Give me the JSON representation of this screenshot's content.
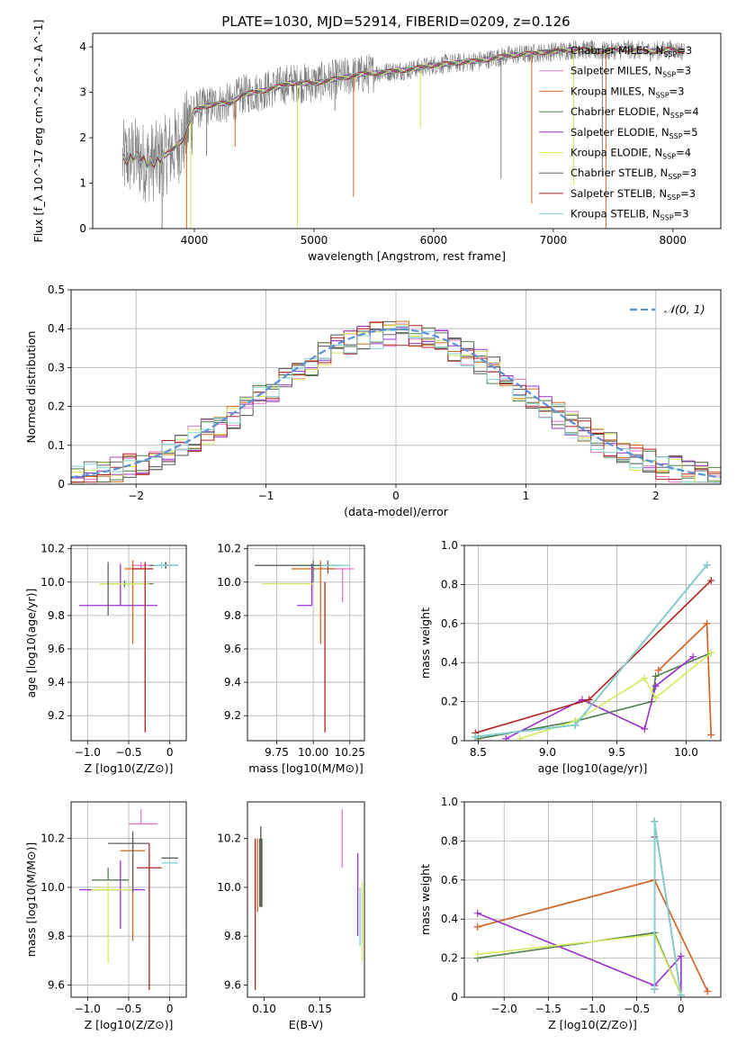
{
  "figure_title": "PLATE=1030, MJD=52914, FIBERID=0209, z=0.126",
  "series": [
    {
      "name": "Chabrier MILES",
      "nssp": "3",
      "color": "#505050"
    },
    {
      "name": "Salpeter MILES",
      "nssp": "3",
      "color": "#e377c2"
    },
    {
      "name": "Kroupa MILES",
      "nssp": "3",
      "color": "#d2691e"
    },
    {
      "name": "Chabrier ELODIE",
      "nssp": "4",
      "color": "#4f7f4f"
    },
    {
      "name": "Salpeter ELODIE",
      "nssp": "5",
      "color": "#9932cc"
    },
    {
      "name": "Kroupa ELODIE",
      "nssp": "4",
      "color": "#d4ea5a"
    },
    {
      "name": "Chabrier STELIB",
      "nssp": "3",
      "color": "#606060"
    },
    {
      "name": "Salpeter STELIB",
      "nssp": "3",
      "color": "#b22222"
    },
    {
      "name": "Kroupa STELIB",
      "nssp": "3",
      "color": "#7fd6d6"
    }
  ],
  "chart_data": [
    {
      "id": "spectrum",
      "type": "line",
      "xlabel": "wavelength [Angstrom, rest frame]",
      "ylabel": "Flux [f_λ 10^-17 erg cm^-2 s^-1 A^-1]",
      "xlim": [
        3150,
        8400
      ],
      "ylim": [
        0,
        4.3
      ],
      "xticks": [
        4000,
        5000,
        6000,
        7000,
        8000
      ],
      "yticks": [
        0,
        1,
        2,
        3,
        4
      ],
      "grid": false,
      "legend": "top-right",
      "data_color": "#808080",
      "model_x": [
        3400,
        3500,
        3600,
        3700,
        3800,
        3900,
        4000,
        4100,
        4200,
        4300,
        4400,
        4600,
        4800,
        5000,
        5200,
        5400,
        5600,
        5800,
        6000,
        6200,
        6400,
        6600,
        6800,
        7000,
        7200,
        7400,
        7600,
        7800,
        8000,
        8100
      ],
      "model_y": [
        1.5,
        1.6,
        1.45,
        1.5,
        1.7,
        1.95,
        2.6,
        2.7,
        2.75,
        2.75,
        2.95,
        3.05,
        3.2,
        3.2,
        3.3,
        3.4,
        3.45,
        3.5,
        3.6,
        3.65,
        3.7,
        3.8,
        3.85,
        3.9,
        3.95,
        3.9,
        3.95,
        3.9,
        3.95,
        3.9
      ],
      "absorption_x": [
        3730,
        3935,
        3970,
        4102,
        4340,
        4861,
        5175,
        5330,
        5890,
        6563,
        6820,
        7170,
        7410,
        7440
      ],
      "absorption_y": [
        0.0,
        0.0,
        0.0,
        1.6,
        1.8,
        0.0,
        2.6,
        0.7,
        2.2,
        1.1,
        0.55,
        0.95,
        1.15,
        0.0
      ]
    },
    {
      "id": "residuals",
      "type": "histogram",
      "xlabel": "(data-model)/error",
      "ylabel": "Normed distribution",
      "xlim": [
        -2.5,
        2.5
      ],
      "ylim": [
        0,
        0.5
      ],
      "xticks": [
        -2,
        -1,
        0,
        1,
        2
      ],
      "yticks": [
        0.0,
        0.1,
        0.2,
        0.3,
        0.4,
        0.5
      ],
      "grid": true,
      "legend": "top-right",
      "gaussian_label": "𝒩(0, 1)",
      "gaussian_color": "#5b8fd6",
      "bin_edges_start": -2.5,
      "bin_width": 0.1,
      "bins": 50
    },
    {
      "id": "age-vs-Z",
      "type": "errorbar",
      "xlabel": "Z [log10(Z/Z⊙)]",
      "ylabel": "age  [log10(age/yr)]",
      "xlim": [
        -1.2,
        0.2
      ],
      "ylim": [
        9.05,
        10.22
      ],
      "xticks": [
        -1.0,
        -0.5,
        0.0
      ],
      "yticks": [
        9.2,
        9.4,
        9.6,
        9.8,
        10.0,
        10.2
      ],
      "grid": true,
      "points": [
        {
          "s": 0,
          "x": -0.05,
          "xerr": [
            0.2,
            0.15
          ],
          "y": 10.1,
          "yerr": [
            0.02,
            0.02
          ]
        },
        {
          "s": 1,
          "x": -0.35,
          "xerr": [
            0.1,
            0.1
          ],
          "y": 10.1,
          "yerr": [
            0.02,
            0.02
          ]
        },
        {
          "s": 2,
          "x": -0.45,
          "xerr": [
            0.1,
            0.1
          ],
          "y": 10.08,
          "yerr": [
            0.45,
            0.05
          ]
        },
        {
          "s": 3,
          "x": -0.55,
          "xerr": [
            0.3,
            0.35
          ],
          "y": 9.99,
          "yerr": [
            0.02,
            0.02
          ]
        },
        {
          "s": 4,
          "x": -0.6,
          "xerr": [
            0.5,
            0.45
          ],
          "y": 9.86,
          "yerr": [
            0.0,
            0.25
          ]
        },
        {
          "s": 5,
          "x": -0.55,
          "xerr": [
            0.3,
            0.3
          ],
          "y": 9.99,
          "yerr": [
            0.0,
            0.0
          ]
        },
        {
          "s": 6,
          "x": -0.75,
          "xerr": [
            0.0,
            0.0
          ],
          "y": 9.99,
          "yerr": [
            0.19,
            0.13
          ]
        },
        {
          "s": 7,
          "x": -0.3,
          "xerr": [
            0.15,
            0.1
          ],
          "y": 10.08,
          "yerr": [
            0.98,
            0.04
          ]
        },
        {
          "s": 8,
          "x": -0.1,
          "xerr": [
            0.1,
            0.2
          ],
          "y": 10.1,
          "yerr": [
            0.02,
            0.02
          ]
        }
      ]
    },
    {
      "id": "age-vs-mass",
      "type": "errorbar",
      "xlabel": "mass [log10(M/M⊙)]",
      "ylabel": "",
      "xlim": [
        9.55,
        10.35
      ],
      "ylim": [
        9.05,
        10.22
      ],
      "xticks": [
        9.75,
        10.0,
        10.25
      ],
      "yticks": [
        9.2,
        9.4,
        9.6,
        9.8,
        10.0,
        10.2
      ],
      "grid": true,
      "points": [
        {
          "s": 0,
          "x": 10.1,
          "xerr": [
            0.5,
            0.0
          ],
          "y": 10.1,
          "yerr": [
            0.0,
            0.0
          ]
        },
        {
          "s": 1,
          "x": 10.2,
          "xerr": [
            0.1,
            0.08
          ],
          "y": 10.08,
          "yerr": [
            0.2,
            0.0
          ]
        },
        {
          "s": 2,
          "x": 10.05,
          "xerr": [
            0.2,
            0.1
          ],
          "y": 10.08,
          "yerr": [
            0.45,
            0.05
          ]
        },
        {
          "s": 3,
          "x": 10.0,
          "xerr": [
            0.1,
            0.2
          ],
          "y": 10.1,
          "yerr": [
            0.1,
            0.03
          ]
        },
        {
          "s": 4,
          "x": 9.99,
          "xerr": [
            0.1,
            0.0
          ],
          "y": 9.86,
          "yerr": [
            0.0,
            0.25
          ]
        },
        {
          "s": 5,
          "x": 9.75,
          "xerr": [
            0.1,
            0.25
          ],
          "y": 9.99,
          "yerr": [
            0.0,
            0.0
          ]
        },
        {
          "s": 6,
          "x": 10.1,
          "xerr": [
            0.05,
            0.05
          ],
          "y": 10.1,
          "yerr": [
            0.05,
            0.03
          ]
        },
        {
          "s": 7,
          "x": 10.08,
          "xerr": [
            0.0,
            0.0
          ],
          "y": 10.0,
          "yerr": [
            0.9,
            0.0
          ]
        },
        {
          "s": 8,
          "x": 10.15,
          "xerr": [
            0.1,
            0.1
          ],
          "y": 10.1,
          "yerr": [
            0.0,
            0.0
          ]
        }
      ]
    },
    {
      "id": "weight-vs-age",
      "type": "line",
      "xlabel": "age  [log10(age/yr)]",
      "ylabel": "mass weight",
      "xlim": [
        8.4,
        10.25
      ],
      "ylim": [
        0,
        1
      ],
      "xticks": [
        8.5,
        9.0,
        9.5,
        10.0
      ],
      "yticks": [
        0.0,
        0.2,
        0.4,
        0.6,
        0.8,
        1.0
      ],
      "grid": true,
      "lines": [
        {
          "s": 0,
          "x": [
            8.48,
            9.2,
            10.15
          ],
          "y": [
            0.02,
            0.08,
            0.9
          ]
        },
        {
          "s": 1,
          "x": [
            9.8,
            10.15,
            10.18
          ],
          "y": [
            0.36,
            0.6,
            0.03
          ]
        },
        {
          "s": 2,
          "x": [
            9.8,
            10.15,
            10.18
          ],
          "y": [
            0.36,
            0.6,
            0.03
          ]
        },
        {
          "s": 3,
          "x": [
            8.5,
            9.2,
            9.75,
            9.78,
            10.18
          ],
          "y": [
            0.01,
            0.1,
            0.2,
            0.33,
            0.45
          ]
        },
        {
          "s": 4,
          "x": [
            8.7,
            9.25,
            9.7,
            9.78,
            10.05
          ],
          "y": [
            0.01,
            0.21,
            0.06,
            0.28,
            0.43
          ]
        },
        {
          "s": 5,
          "x": [
            8.8,
            9.2,
            9.7,
            9.78,
            10.18
          ],
          "y": [
            0.01,
            0.1,
            0.32,
            0.22,
            0.45
          ]
        },
        {
          "s": 6,
          "x": [
            8.48,
            9.2,
            10.15
          ],
          "y": [
            0.02,
            0.08,
            0.9
          ]
        },
        {
          "s": 7,
          "x": [
            8.48,
            9.3,
            10.18
          ],
          "y": [
            0.04,
            0.21,
            0.82
          ]
        },
        {
          "s": 8,
          "x": [
            8.48,
            9.2,
            10.15
          ],
          "y": [
            0.02,
            0.08,
            0.9
          ]
        }
      ]
    },
    {
      "id": "mass-vs-Z",
      "type": "errorbar",
      "xlabel": "Z [log10(Z/Z⊙)]",
      "ylabel": "mass [log10(M/M⊙)]",
      "xlim": [
        -1.2,
        0.2
      ],
      "ylim": [
        9.55,
        10.35
      ],
      "xticks": [
        -1.0,
        -0.5,
        0.0
      ],
      "yticks": [
        9.6,
        9.8,
        10.0,
        10.2
      ],
      "grid": true,
      "points": [
        {
          "s": 0,
          "x": 0.0,
          "xerr": [
            0.1,
            0.1
          ],
          "y": 10.12,
          "yerr": [
            0.0,
            0.0
          ]
        },
        {
          "s": 1,
          "x": -0.35,
          "xerr": [
            0.15,
            0.2
          ],
          "y": 10.26,
          "yerr": [
            0.0,
            0.06
          ]
        },
        {
          "s": 2,
          "x": -0.45,
          "xerr": [
            0.15,
            0.15
          ],
          "y": 10.15,
          "yerr": [
            0.37,
            0.05
          ]
        },
        {
          "s": 3,
          "x": -0.75,
          "xerr": [
            0.2,
            0.25
          ],
          "y": 10.03,
          "yerr": [
            0.0,
            0.05
          ]
        },
        {
          "s": 4,
          "x": -0.6,
          "xerr": [
            0.5,
            0.3
          ],
          "y": 9.99,
          "yerr": [
            0.16,
            0.12
          ]
        },
        {
          "s": 5,
          "x": -0.75,
          "xerr": [
            0.2,
            0.3
          ],
          "y": 9.99,
          "yerr": [
            0.3,
            0.03
          ]
        },
        {
          "s": 6,
          "x": -0.45,
          "xerr": [
            0.3,
            0.2
          ],
          "y": 10.18,
          "yerr": [
            0.2,
            0.05
          ]
        },
        {
          "s": 7,
          "x": -0.25,
          "xerr": [
            0.15,
            0.15
          ],
          "y": 10.08,
          "yerr": [
            0.5,
            0.1
          ]
        },
        {
          "s": 8,
          "x": 0.0,
          "xerr": [
            0.1,
            0.1
          ],
          "y": 10.1,
          "yerr": [
            0.0,
            0.0
          ]
        }
      ]
    },
    {
      "id": "mass-vs-EBV",
      "type": "errorbar",
      "xlabel": "E(B-V)",
      "ylabel": "",
      "xlim": [
        0.085,
        0.19
      ],
      "ylim": [
        9.55,
        10.35
      ],
      "xticks": [
        0.1,
        0.15
      ],
      "yticks": [
        9.6,
        9.8,
        10.0,
        10.2
      ],
      "grid": false,
      "points": [
        {
          "s": 0,
          "x": 0.097,
          "xerr": [
            0,
            0
          ],
          "y": 10.12,
          "yerr": [
            0.2,
            0.13
          ]
        },
        {
          "s": 1,
          "x": 0.17,
          "xerr": [
            0,
            0
          ],
          "y": 10.2,
          "yerr": [
            0.12,
            0.12
          ]
        },
        {
          "s": 2,
          "x": 0.094,
          "xerr": [
            0,
            0
          ],
          "y": 10.1,
          "yerr": [
            0.2,
            0.1
          ]
        },
        {
          "s": 3,
          "x": 0.098,
          "xerr": [
            0,
            0
          ],
          "y": 10.05,
          "yerr": [
            0.13,
            0.15
          ]
        },
        {
          "s": 4,
          "x": 0.184,
          "xerr": [
            0,
            0
          ],
          "y": 9.95,
          "yerr": [
            0.15,
            0.19
          ]
        },
        {
          "s": 5,
          "x": 0.188,
          "xerr": [
            0,
            0
          ],
          "y": 9.85,
          "yerr": [
            0.15,
            0.17
          ]
        },
        {
          "s": 6,
          "x": 0.096,
          "xerr": [
            0,
            0
          ],
          "y": 10.0,
          "yerr": [
            0.08,
            0.2
          ]
        },
        {
          "s": 7,
          "x": 0.092,
          "xerr": [
            0,
            0
          ],
          "y": 9.9,
          "yerr": [
            0.32,
            0.3
          ]
        },
        {
          "s": 8,
          "x": 0.186,
          "xerr": [
            0,
            0
          ],
          "y": 9.86,
          "yerr": [
            0.1,
            0.14
          ]
        }
      ]
    },
    {
      "id": "weight-vs-Z",
      "type": "line",
      "xlabel": "Z [log10(Z/Z⊙)]",
      "ylabel": "mass weight",
      "xlim": [
        -2.45,
        0.45
      ],
      "ylim": [
        0,
        1
      ],
      "xticks": [
        -2.0,
        -1.5,
        -1.0,
        -0.5,
        0.0
      ],
      "yticks": [
        0.0,
        0.2,
        0.4,
        0.6,
        0.8,
        1.0
      ],
      "grid": true,
      "lines": [
        {
          "s": 0,
          "x": [
            -0.3,
            -0.3,
            0.0
          ],
          "y": [
            0.04,
            0.9,
            0.01
          ]
        },
        {
          "s": 1,
          "x": [
            -2.3,
            -0.3,
            0.3
          ],
          "y": [
            0.36,
            0.6,
            0.03
          ]
        },
        {
          "s": 2,
          "x": [
            -2.3,
            -0.3,
            0.3
          ],
          "y": [
            0.36,
            0.6,
            0.03
          ]
        },
        {
          "s": 3,
          "x": [
            -2.3,
            -0.3,
            0.0
          ],
          "y": [
            0.2,
            0.33,
            0.01
          ]
        },
        {
          "s": 4,
          "x": [
            -2.3,
            -0.3,
            0.0,
            0.0
          ],
          "y": [
            0.43,
            0.06,
            0.21,
            0.01
          ]
        },
        {
          "s": 5,
          "x": [
            -2.3,
            -0.3,
            0.0
          ],
          "y": [
            0.22,
            0.32,
            0.01
          ]
        },
        {
          "s": 6,
          "x": [
            -0.3,
            -0.3,
            0.0
          ],
          "y": [
            0.04,
            0.9,
            0.01
          ]
        },
        {
          "s": 7,
          "x": [
            -0.3,
            -0.3
          ],
          "y": [
            0.04,
            0.82
          ]
        },
        {
          "s": 8,
          "x": [
            -0.3,
            -0.3,
            0.0
          ],
          "y": [
            0.04,
            0.9,
            0.01
          ]
        }
      ]
    }
  ]
}
